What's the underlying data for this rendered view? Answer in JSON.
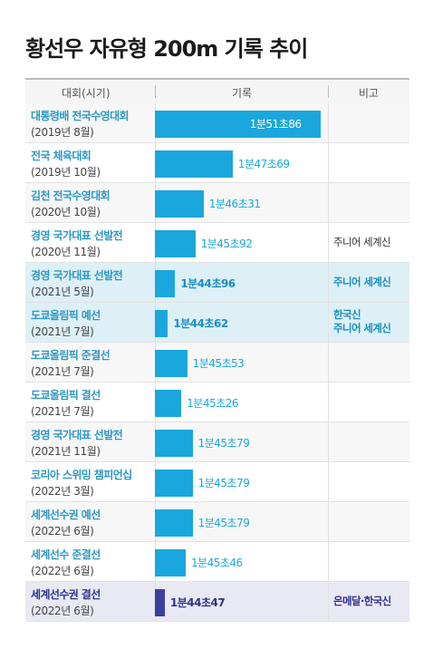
{
  "title": "황선우 자유형 200m 기록 추이",
  "headers": {
    "event": "대회(시기)",
    "record": "기록",
    "note": "비고"
  },
  "chart_data": {
    "type": "bar",
    "orientation": "horizontal",
    "title": "황선우 자유형 200m 기록 추이",
    "categories": [
      "대통령배 전국수영대회 (2019년 8월)",
      "전국 체육대회 (2019년 10월)",
      "김천 전국수영대회 (2020년 10월)",
      "경영 국가대표 선발전 (2020년 11월)",
      "경영 국가대표 선발전 (2021년 5월)",
      "도쿄올림픽 예선 (2021년 7월)",
      "도쿄올림픽 준결선 (2021년 7월)",
      "도쿄올림픽 결선 (2021년 7월)",
      "경영 국가대표 선발전 (2021년 11월)",
      "코리아 스위밍 챔피언십 (2022년 3월)",
      "세계선수권 예선 (2022년 6월)",
      "세계선수 준결선 (2022년 6월)",
      "세계선수권 결선 (2022년 6월)"
    ],
    "values_seconds": [
      111.86,
      107.69,
      106.31,
      105.92,
      104.96,
      104.62,
      105.53,
      105.26,
      105.79,
      105.79,
      105.79,
      105.46,
      104.47
    ],
    "value_labels": [
      "1분51초86",
      "1분47초69",
      "1분46초31",
      "1분45초92",
      "1분44초96",
      "1분44초62",
      "1분45초53",
      "1분45초26",
      "1분45초79",
      "1분45초79",
      "1분45초79",
      "1분45초46",
      "1분44초47"
    ],
    "xlim_seconds": [
      104.0,
      112.0
    ]
  },
  "rows": [
    {
      "event": "대통령배 전국수영대회",
      "period": "(2019년 8월)",
      "record": "1분51초86",
      "note_lines": []
    },
    {
      "event": "전국 체육대회",
      "period": "(2019년 10월)",
      "record": "1분47초69",
      "note_lines": []
    },
    {
      "event": "김천 전국수영대회",
      "period": "(2020년 10월)",
      "record": "1분46초31",
      "note_lines": []
    },
    {
      "event": "경영 국가대표 선발전",
      "period": "(2020년 11월)",
      "record": "1분45초92",
      "note_lines": [
        "주니어 세계신"
      ]
    },
    {
      "event": "경영 국가대표 선발전",
      "period": "(2021년 5월)",
      "record": "1분44초96",
      "note_lines": [
        "주니어 세계신"
      ]
    },
    {
      "event": "도쿄올림픽 예선",
      "period": "(2021년 7월)",
      "record": "1분44초62",
      "note_lines": [
        "한국신",
        "주니어 세계신"
      ]
    },
    {
      "event": "도쿄올림픽 준결선",
      "period": "(2021년 7월)",
      "record": "1분45초53",
      "note_lines": []
    },
    {
      "event": "도쿄올림픽 결선",
      "period": "(2021년 7월)",
      "record": "1분45초26",
      "note_lines": []
    },
    {
      "event": "경영 국가대표 선발전",
      "period": "(2021년 11월)",
      "record": "1분45초79",
      "note_lines": []
    },
    {
      "event": "코리아 스위밍 챔피언십",
      "period": "(2022년 3월)",
      "record": "1분45초79",
      "note_lines": []
    },
    {
      "event": "세계선수권 예선",
      "period": "(2022년 6월)",
      "record": "1분45초79",
      "note_lines": []
    },
    {
      "event": "세계선수 준결선",
      "period": "(2022년 6월)",
      "record": "1분45초46",
      "note_lines": []
    },
    {
      "event": "세계선수권 결선",
      "period": "(2022년 6월)",
      "record": "1분44초47",
      "note_lines": [
        "은메달·한국신"
      ]
    }
  ],
  "colors": {
    "bar": "#1aa7dd",
    "bar_final": "#3b3f9e",
    "highlight_row": "#ddf0f6",
    "final_row": "#e9e9f4"
  }
}
